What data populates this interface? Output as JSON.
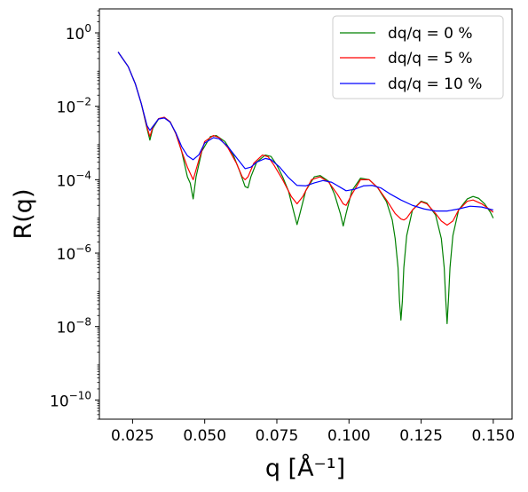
{
  "chart_data": {
    "type": "line",
    "xlabel": "q [Å⁻¹]",
    "ylabel": "R(q)",
    "xscale": "linear",
    "yscale": "log",
    "xlim": [
      0.0135,
      0.1565
    ],
    "ylim": [
      3e-11,
      4.5
    ],
    "xticks": [
      0.025,
      0.05,
      0.075,
      0.1,
      0.125,
      0.15
    ],
    "xtick_labels": [
      "0.025",
      "0.050",
      "0.075",
      "0.100",
      "0.125",
      "0.150"
    ],
    "yticks": [
      1e-10,
      1e-08,
      1e-06,
      0.0001,
      0.01,
      1
    ],
    "ytick_labels": [
      {
        "base": "10",
        "exp": "−10"
      },
      {
        "base": "10",
        "exp": "−8"
      },
      {
        "base": "10",
        "exp": "−6"
      },
      {
        "base": "10",
        "exp": "−4"
      },
      {
        "base": "10",
        "exp": "−2"
      },
      {
        "base": "10",
        "exp": "0"
      }
    ],
    "grid": false,
    "legend_position": "top-right",
    "series": [
      {
        "name": "dq/q = 0 %",
        "color": "#008000",
        "x": [
          0.02,
          0.0235,
          0.026,
          0.028,
          0.03,
          0.031,
          0.032,
          0.034,
          0.036,
          0.038,
          0.04,
          0.042,
          0.044,
          0.045,
          0.046,
          0.047,
          0.049,
          0.052,
          0.054,
          0.057,
          0.06,
          0.062,
          0.064,
          0.065,
          0.066,
          0.068,
          0.071,
          0.073,
          0.075,
          0.077,
          0.079,
          0.081,
          0.082,
          0.083,
          0.085,
          0.088,
          0.09,
          0.093,
          0.095,
          0.097,
          0.098,
          0.099,
          0.101,
          0.104,
          0.107,
          0.11,
          0.113,
          0.115,
          0.116,
          0.117,
          0.1175,
          0.118,
          0.1185,
          0.119,
          0.12,
          0.122,
          0.125,
          0.127,
          0.13,
          0.132,
          0.133,
          0.1335,
          0.134,
          0.1345,
          0.135,
          0.136,
          0.138,
          0.141,
          0.143,
          0.145,
          0.147,
          0.149,
          0.15
        ],
        "y": [
          0.3,
          0.12,
          0.04,
          0.012,
          0.0025,
          0.0012,
          0.0025,
          0.0045,
          0.005,
          0.0038,
          0.0018,
          0.0006,
          0.00012,
          8e-05,
          3e-05,
          0.00012,
          0.0006,
          0.0015,
          0.0016,
          0.0011,
          0.00045,
          0.00018,
          6.5e-05,
          6e-05,
          0.00012,
          0.0003,
          0.00047,
          0.00043,
          0.00025,
          0.00012,
          5e-05,
          1.2e-05,
          6e-06,
          1.2e-05,
          5e-05,
          0.00012,
          0.00013,
          9e-05,
          4e-05,
          1.2e-05,
          5.5e-06,
          1.2e-05,
          5e-05,
          0.00011,
          0.0001,
          6e-05,
          2.5e-05,
          8e-06,
          2.5e-06,
          4e-07,
          5e-08,
          1.5e-08,
          5e-08,
          4e-07,
          3e-06,
          1.5e-05,
          2.6e-05,
          2.3e-05,
          1.1e-05,
          2.5e-06,
          4e-07,
          6e-08,
          1.2e-08,
          6e-08,
          4e-07,
          3e-06,
          1.5e-05,
          3e-05,
          3.5e-05,
          3.1e-05,
          2.2e-05,
          1.3e-05,
          9e-06
        ]
      },
      {
        "name": "dq/q = 5 %",
        "color": "#ff0000",
        "x": [
          0.02,
          0.0235,
          0.026,
          0.028,
          0.03,
          0.031,
          0.032,
          0.034,
          0.036,
          0.038,
          0.04,
          0.042,
          0.044,
          0.046,
          0.048,
          0.05,
          0.053,
          0.055,
          0.058,
          0.061,
          0.063,
          0.064,
          0.065,
          0.067,
          0.07,
          0.072,
          0.074,
          0.077,
          0.08,
          0.082,
          0.084,
          0.087,
          0.09,
          0.093,
          0.096,
          0.098,
          0.099,
          0.101,
          0.104,
          0.107,
          0.11,
          0.113,
          0.116,
          0.118,
          0.119,
          0.12,
          0.122,
          0.125,
          0.127,
          0.13,
          0.132,
          0.134,
          0.136,
          0.138,
          0.141,
          0.143,
          0.146,
          0.148,
          0.15
        ],
        "y": [
          0.3,
          0.12,
          0.04,
          0.012,
          0.0027,
          0.0015,
          0.0027,
          0.0046,
          0.005,
          0.0038,
          0.0018,
          0.0006,
          0.00022,
          0.0001,
          0.00035,
          0.0011,
          0.0016,
          0.0014,
          0.00075,
          0.00028,
          0.00012,
          0.0001,
          0.00012,
          0.00028,
          0.00047,
          0.00042,
          0.00025,
          0.0001,
          3.5e-05,
          2.2e-05,
          3.5e-05,
          0.0001,
          0.00012,
          8.5e-05,
          4e-05,
          2.2e-05,
          2e-05,
          4e-05,
          0.0001,
          0.0001,
          6e-05,
          2.8e-05,
          1.2e-05,
          8.5e-06,
          8e-06,
          9e-06,
          1.5e-05,
          2.5e-05,
          2.2e-05,
          1.2e-05,
          7.5e-06,
          5.8e-06,
          7.5e-06,
          1.5e-05,
          2.6e-05,
          2.8e-05,
          2.2e-05,
          1.7e-05,
          1.3e-05
        ]
      },
      {
        "name": "dq/q = 10 %",
        "color": "#0000ff",
        "x": [
          0.02,
          0.0235,
          0.026,
          0.028,
          0.03,
          0.031,
          0.032,
          0.034,
          0.036,
          0.038,
          0.04,
          0.042,
          0.044,
          0.046,
          0.048,
          0.05,
          0.053,
          0.055,
          0.058,
          0.061,
          0.064,
          0.066,
          0.068,
          0.071,
          0.073,
          0.076,
          0.079,
          0.082,
          0.085,
          0.088,
          0.091,
          0.094,
          0.097,
          0.099,
          0.102,
          0.105,
          0.108,
          0.111,
          0.114,
          0.118,
          0.122,
          0.126,
          0.13,
          0.134,
          0.138,
          0.142,
          0.146,
          0.15
        ],
        "y": [
          0.3,
          0.12,
          0.04,
          0.012,
          0.003,
          0.0022,
          0.0028,
          0.0045,
          0.0048,
          0.0037,
          0.0019,
          0.0008,
          0.00045,
          0.00035,
          0.00048,
          0.001,
          0.0014,
          0.0013,
          0.0008,
          0.0004,
          0.0002,
          0.00022,
          0.0003,
          0.00038,
          0.00035,
          0.00022,
          0.000115,
          7e-05,
          6.8e-05,
          8.2e-05,
          9.5e-05,
          8.5e-05,
          6.2e-05,
          5e-05,
          5.5e-05,
          6.8e-05,
          7e-05,
          6e-05,
          4.2e-05,
          2.8e-05,
          2e-05,
          1.6e-05,
          1.4e-05,
          1.4e-05,
          1.6e-05,
          1.9e-05,
          1.8e-05,
          1.5e-05
        ]
      }
    ]
  }
}
